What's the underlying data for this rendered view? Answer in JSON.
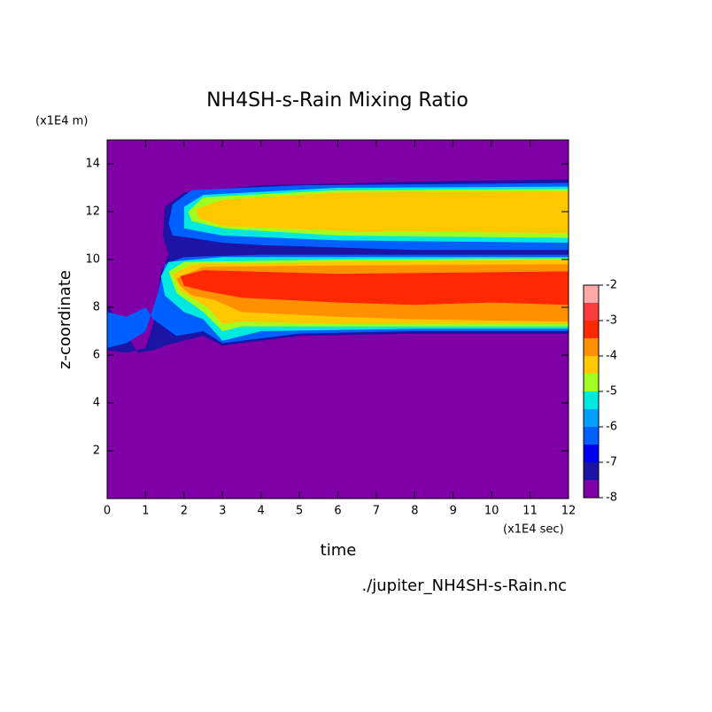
{
  "chart_data": {
    "type": "contour",
    "title": "NH4SH-s-Rain Mixing Ratio",
    "y_unit": "(x1E4 m)",
    "y_label": "z-coordinate",
    "x_label": "time",
    "x_unit": "(x1E4 sec)",
    "source": "./jupiter_NH4SH-s-Rain.nc",
    "xlim": [
      0,
      12
    ],
    "ylim": [
      0,
      15
    ],
    "xticks": [
      0,
      1,
      2,
      3,
      4,
      5,
      6,
      7,
      8,
      9,
      10,
      11,
      12
    ],
    "yticks": [
      2,
      4,
      6,
      8,
      10,
      12,
      14
    ],
    "levels": [
      -8,
      -7.5,
      -7,
      -6.5,
      -6,
      -5.5,
      -5,
      -4.5,
      -4,
      -3.5,
      -3,
      -2.5,
      -2
    ],
    "colors": [
      "#8000a8",
      "#1c14a4",
      "#0000f0",
      "#0060ff",
      "#00a0ff",
      "#00e8e0",
      "#a0ff20",
      "#ffc800",
      "#ff9000",
      "#ff2800",
      "#ff3c3c",
      "#ffa8a8"
    ],
    "colorbar_ticks": [
      -8,
      -7,
      -6,
      -5,
      -4,
      -3,
      -2
    ],
    "regions": [
      {
        "level": -8,
        "polygon": [
          [
            0,
            0
          ],
          [
            12,
            0
          ],
          [
            12,
            15
          ],
          [
            0,
            15
          ]
        ]
      },
      {
        "level": -7.5,
        "polygon": [
          [
            0,
            6.2
          ],
          [
            0.5,
            6.1
          ],
          [
            1,
            6.3
          ],
          [
            1.2,
            7.3
          ],
          [
            1.4,
            9.5
          ],
          [
            1.6,
            10.2
          ],
          [
            1.45,
            11
          ],
          [
            1.5,
            12.2
          ],
          [
            2,
            12.8
          ],
          [
            4,
            13.1
          ],
          [
            8,
            13.25
          ],
          [
            12,
            13.35
          ],
          [
            12,
            6.9
          ],
          [
            8,
            6.9
          ],
          [
            5,
            6.8
          ],
          [
            3,
            6.4
          ],
          [
            2.5,
            6.8
          ],
          [
            2,
            6.6
          ],
          [
            1.5,
            6.4
          ],
          [
            1.2,
            6.2
          ],
          [
            0.8,
            6.1
          ],
          [
            0,
            8.1
          ]
        ]
      },
      {
        "level": -6.5,
        "polygon": [
          [
            1.6,
            11.5
          ],
          [
            1.7,
            12.3
          ],
          [
            2.2,
            12.9
          ],
          [
            5,
            13.1
          ],
          [
            12,
            13.2
          ],
          [
            12,
            10.4
          ],
          [
            8,
            10.4
          ],
          [
            4,
            10.6
          ],
          [
            3,
            10.7
          ],
          [
            2.2,
            10.9
          ],
          [
            1.7,
            11
          ]
        ]
      },
      {
        "level": -6.5,
        "polygon": [
          [
            0,
            6.3
          ],
          [
            0.5,
            6.5
          ],
          [
            1,
            7
          ],
          [
            1.3,
            8.5
          ],
          [
            1.5,
            9.8
          ],
          [
            2,
            10.1
          ],
          [
            4,
            10.2
          ],
          [
            12,
            10.2
          ],
          [
            12,
            7
          ],
          [
            8,
            7
          ],
          [
            5,
            6.9
          ],
          [
            3,
            6.5
          ],
          [
            2.5,
            7
          ],
          [
            1.8,
            6.8
          ],
          [
            1.2,
            7.5
          ],
          [
            1,
            8
          ],
          [
            0.5,
            7.6
          ],
          [
            0,
            7.8
          ]
        ]
      },
      {
        "level": -5.5,
        "polygon": [
          [
            2,
            12.2
          ],
          [
            2.5,
            12.7
          ],
          [
            6,
            13
          ],
          [
            12,
            13.05
          ],
          [
            12,
            10.7
          ],
          [
            6,
            10.8
          ],
          [
            3,
            11
          ],
          [
            2,
            11.3
          ]
        ]
      },
      {
        "level": -5.5,
        "polygon": [
          [
            1.4,
            9.3
          ],
          [
            1.6,
            9.9
          ],
          [
            3,
            10.1
          ],
          [
            12,
            10.1
          ],
          [
            12,
            7.1
          ],
          [
            8,
            7.1
          ],
          [
            4,
            7
          ],
          [
            3,
            6.6
          ],
          [
            2.5,
            7.5
          ],
          [
            2,
            7.8
          ],
          [
            1.5,
            8.5
          ]
        ]
      },
      {
        "level": -5,
        "polygon": [
          [
            2.1,
            12
          ],
          [
            2.5,
            12.6
          ],
          [
            6,
            12.9
          ],
          [
            12,
            12.95
          ],
          [
            12,
            10.9
          ],
          [
            6,
            11
          ],
          [
            3,
            11.3
          ],
          [
            2.2,
            11.6
          ]
        ]
      },
      {
        "level": -5,
        "polygon": [
          [
            1.6,
            9.5
          ],
          [
            2,
            9.9
          ],
          [
            6,
            10
          ],
          [
            12,
            10.05
          ],
          [
            12,
            7.2
          ],
          [
            6,
            7.2
          ],
          [
            3.5,
            7.2
          ],
          [
            3,
            7
          ],
          [
            2.5,
            7.8
          ],
          [
            1.8,
            8.6
          ]
        ]
      },
      {
        "level": -4.5,
        "polygon": [
          [
            2.3,
            12.1
          ],
          [
            3,
            12.5
          ],
          [
            6,
            12.8
          ],
          [
            12,
            12.85
          ],
          [
            12,
            11.1
          ],
          [
            6,
            11.2
          ],
          [
            3,
            11.4
          ],
          [
            2.4,
            11.7
          ]
        ]
      },
      {
        "level": -4.5,
        "polygon": [
          [
            1.7,
            9.4
          ],
          [
            2.2,
            9.8
          ],
          [
            6,
            9.9
          ],
          [
            12,
            10
          ],
          [
            12,
            7.3
          ],
          [
            6,
            7.3
          ],
          [
            3.5,
            7.4
          ],
          [
            3,
            7.3
          ],
          [
            2.6,
            8
          ],
          [
            1.9,
            8.7
          ]
        ]
      },
      {
        "level": -4,
        "polygon": [
          [
            1.8,
            9.2
          ],
          [
            2.5,
            9.7
          ],
          [
            6,
            9.75
          ],
          [
            12,
            9.8
          ],
          [
            12,
            7.4
          ],
          [
            8,
            7.5
          ],
          [
            6,
            7.6
          ],
          [
            3.5,
            7.8
          ],
          [
            2.8,
            8.3
          ],
          [
            2.2,
            8.5
          ],
          [
            1.9,
            8.9
          ]
        ]
      },
      {
        "level": -3.5,
        "polygon": [
          [
            1.9,
            9.3
          ],
          [
            2.5,
            9.55
          ],
          [
            6,
            9.4
          ],
          [
            12,
            9.5
          ],
          [
            12,
            8.1
          ],
          [
            10,
            8.2
          ],
          [
            8,
            8.1
          ],
          [
            6,
            8.2
          ],
          [
            3.5,
            8.4
          ],
          [
            2.5,
            8.7
          ],
          [
            2,
            8.9
          ]
        ]
      }
    ]
  }
}
